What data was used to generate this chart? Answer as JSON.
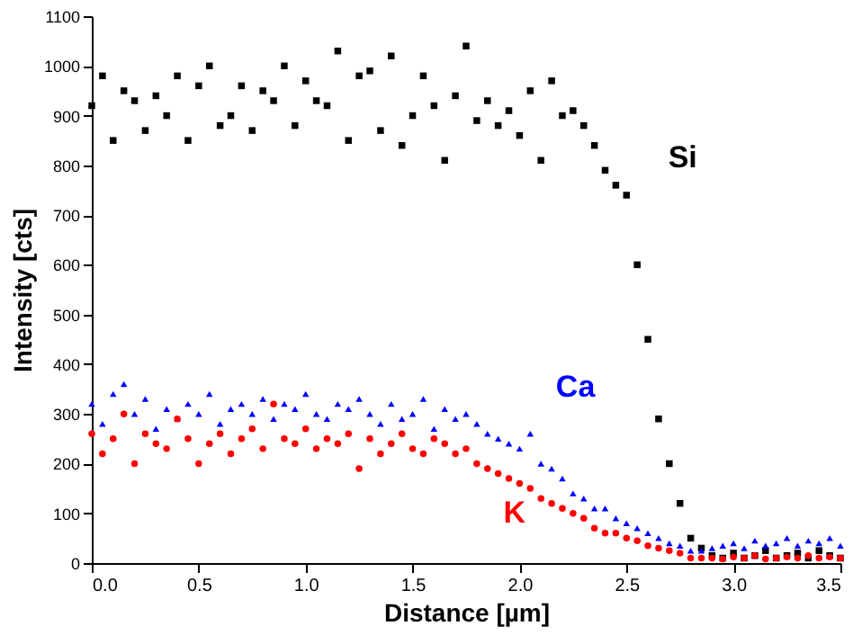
{
  "chart_data": {
    "type": "scatter",
    "xlabel": "Distance [µm]",
    "ylabel": "Intensity [cts]",
    "x": [
      0.0,
      0.05,
      0.1,
      0.15,
      0.2,
      0.25,
      0.3,
      0.35,
      0.4,
      0.45,
      0.5,
      0.55,
      0.6,
      0.65,
      0.7,
      0.75,
      0.8,
      0.85,
      0.9,
      0.95,
      1.0,
      1.05,
      1.1,
      1.15,
      1.2,
      1.25,
      1.3,
      1.35,
      1.4,
      1.45,
      1.5,
      1.55,
      1.6,
      1.65,
      1.7,
      1.75,
      1.8,
      1.85,
      1.9,
      1.95,
      2.0,
      2.05,
      2.1,
      2.15,
      2.2,
      2.25,
      2.3,
      2.35,
      2.4,
      2.45,
      2.5,
      2.55,
      2.6,
      2.65,
      2.7,
      2.75,
      2.8,
      2.85,
      2.9,
      2.95,
      3.0,
      3.05,
      3.1,
      3.15,
      3.2,
      3.25,
      3.3,
      3.35,
      3.4,
      3.45,
      3.5
    ],
    "series": [
      {
        "name": "Si",
        "color": "#000000",
        "marker": "square",
        "values": [
          920,
          980,
          850,
          950,
          930,
          870,
          940,
          900,
          980,
          850,
          960,
          1000,
          880,
          900,
          960,
          870,
          950,
          930,
          1000,
          880,
          970,
          930,
          920,
          1030,
          850,
          980,
          990,
          870,
          1020,
          840,
          900,
          980,
          920,
          810,
          940,
          1040,
          890,
          930,
          880,
          910,
          860,
          950,
          810,
          970,
          900,
          910,
          880,
          840,
          790,
          760,
          740,
          600,
          450,
          290,
          200,
          120,
          50,
          30,
          15,
          10,
          20,
          10,
          15,
          25,
          10,
          15,
          20,
          10,
          25,
          15,
          10
        ]
      },
      {
        "name": "Ca",
        "color": "#0000ff",
        "marker": "triangle",
        "values": [
          320,
          280,
          340,
          360,
          300,
          330,
          270,
          310,
          290,
          320,
          300,
          340,
          280,
          310,
          320,
          300,
          330,
          290,
          320,
          310,
          340,
          300,
          290,
          320,
          310,
          330,
          300,
          280,
          320,
          290,
          300,
          330,
          270,
          310,
          290,
          300,
          280,
          260,
          250,
          240,
          230,
          260,
          200,
          190,
          170,
          140,
          130,
          110,
          110,
          90,
          80,
          70,
          60,
          50,
          40,
          35,
          25,
          25,
          30,
          35,
          40,
          30,
          45,
          35,
          40,
          50,
          35,
          45,
          40,
          50,
          35
        ]
      },
      {
        "name": "K",
        "color": "#ff0000",
        "marker": "circle",
        "values": [
          260,
          220,
          250,
          300,
          200,
          260,
          240,
          230,
          290,
          250,
          200,
          240,
          260,
          220,
          250,
          270,
          230,
          320,
          250,
          240,
          270,
          230,
          250,
          240,
          260,
          190,
          250,
          220,
          240,
          260,
          230,
          220,
          250,
          240,
          220,
          230,
          200,
          190,
          180,
          170,
          160,
          150,
          130,
          120,
          110,
          100,
          90,
          70,
          60,
          60,
          50,
          45,
          35,
          30,
          25,
          20,
          10,
          10,
          10,
          8,
          12,
          10,
          15,
          8,
          10,
          12,
          10,
          15,
          10,
          12,
          10
        ]
      }
    ],
    "xlim": [
      0,
      3.5
    ],
    "ylim": [
      0,
      1100
    ],
    "xticks": [
      {
        "value": 0,
        "label": "0.0"
      },
      {
        "value": 0.5,
        "label": "0.5"
      },
      {
        "value": 1,
        "label": "1.0"
      },
      {
        "value": 1.5,
        "label": "1.5"
      },
      {
        "value": 2,
        "label": "2.0"
      },
      {
        "value": 2.5,
        "label": "2.5"
      },
      {
        "value": 3,
        "label": "3.0"
      },
      {
        "value": 3.5,
        "label": "3.5"
      }
    ],
    "yticks": [
      0,
      100,
      200,
      300,
      400,
      500,
      600,
      700,
      800,
      900,
      1000,
      1100
    ],
    "grid": false,
    "legend": false
  }
}
